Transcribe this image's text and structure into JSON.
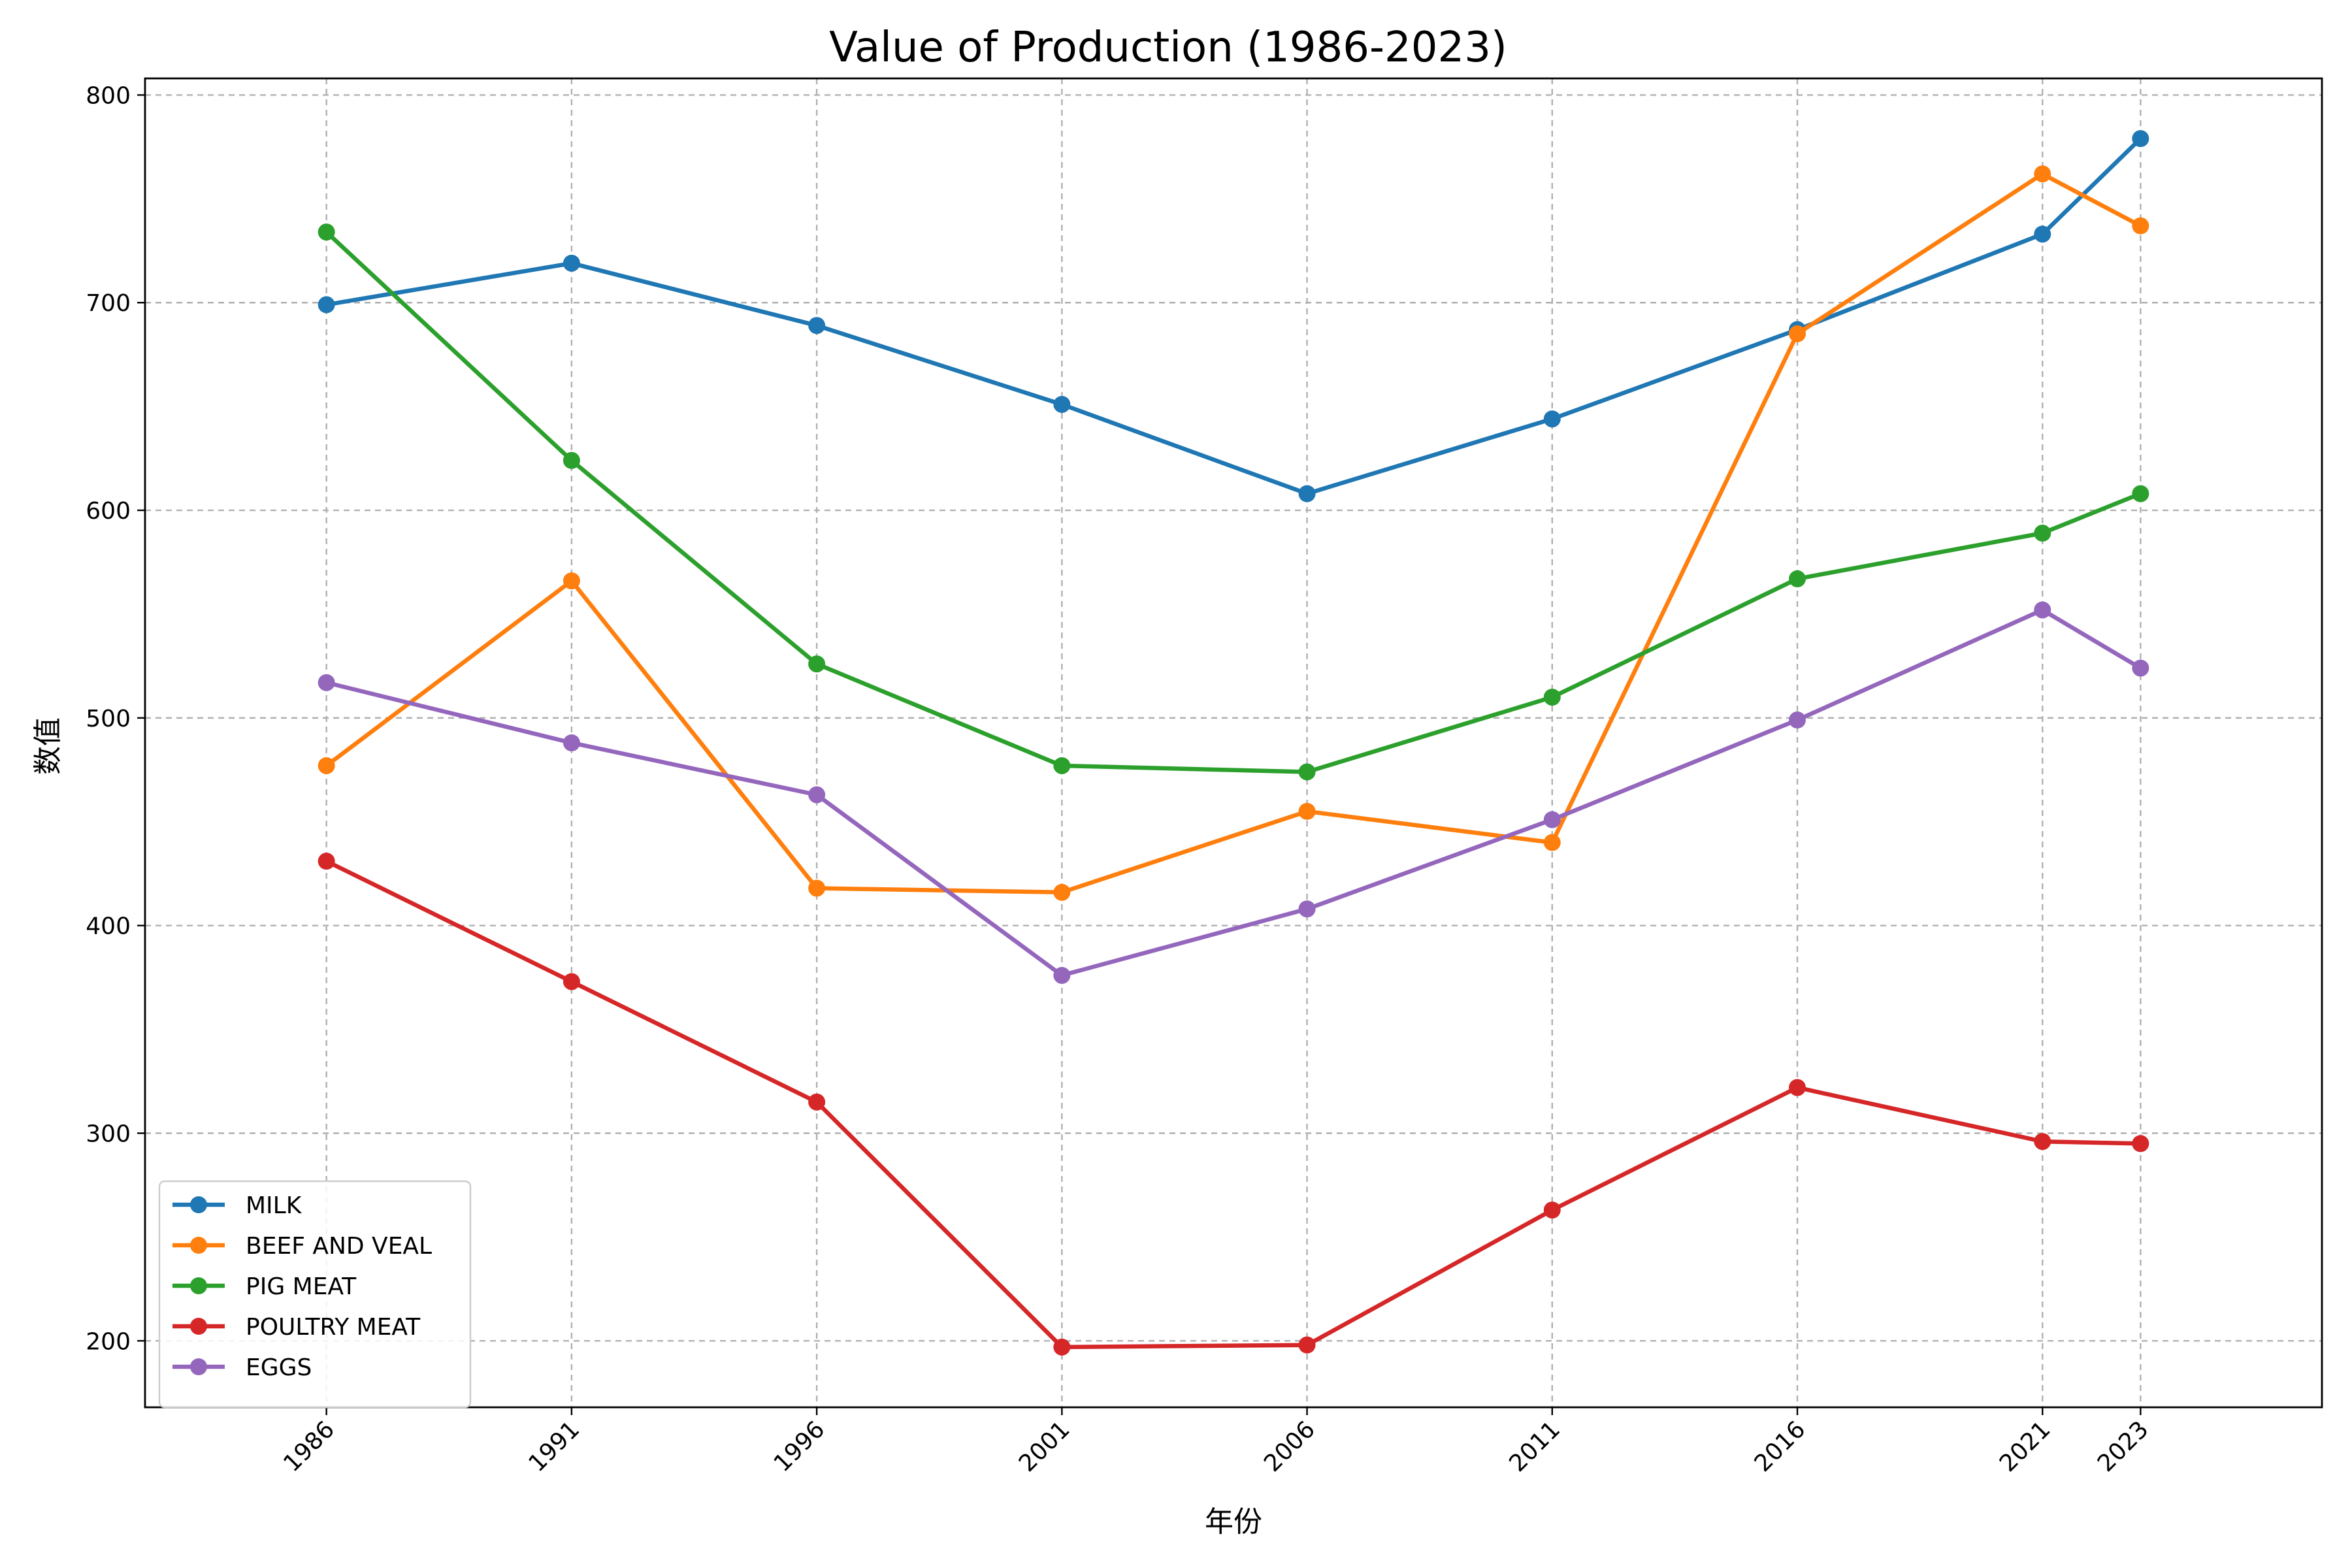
{
  "chart_data": {
    "type": "line",
    "title": "Value of Production (1986-2023)",
    "xlabel": "年份",
    "ylabel": "数值",
    "x": [
      1986,
      1991,
      1996,
      2001,
      2006,
      2011,
      2016,
      2021,
      2023
    ],
    "x_tick_labels": [
      "1986",
      "1991",
      "1996",
      "2001",
      "2006",
      "2011",
      "2016",
      "2021",
      "2023"
    ],
    "y_ticks": [
      200,
      300,
      400,
      500,
      600,
      700,
      800
    ],
    "y_tick_labels": [
      "200",
      "300",
      "400",
      "500",
      "600",
      "700",
      "800"
    ],
    "xlim": [
      1982.3,
      2026.7
    ],
    "ylim": [
      168,
      808
    ],
    "grid": true,
    "legend_position": "lower-left",
    "series": [
      {
        "name": "MILK",
        "color": "#1f77b4",
        "values": [
          699,
          719,
          689,
          651,
          608,
          644,
          687,
          733,
          779
        ]
      },
      {
        "name": "BEEF AND VEAL",
        "color": "#ff7f0e",
        "values": [
          477,
          566,
          418,
          416,
          455,
          440,
          685,
          762,
          737
        ]
      },
      {
        "name": "PIG MEAT",
        "color": "#2ca02c",
        "values": [
          734,
          624,
          526,
          477,
          474,
          510,
          567,
          589,
          608
        ]
      },
      {
        "name": "POULTRY MEAT",
        "color": "#d62728",
        "values": [
          431,
          373,
          315,
          197,
          198,
          263,
          322,
          296,
          295
        ]
      },
      {
        "name": "EGGS",
        "color": "#9467bd",
        "values": [
          517,
          488,
          463,
          376,
          408,
          451,
          499,
          552,
          524
        ]
      }
    ]
  }
}
